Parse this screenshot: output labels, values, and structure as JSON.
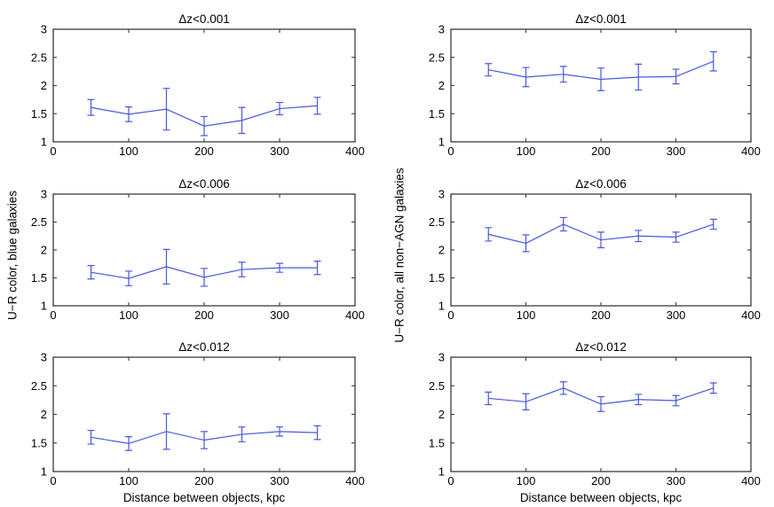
{
  "figure": {
    "background": "#ffffff",
    "line_color": "#4858e0",
    "axis_color": "#3c3c3c",
    "text_color": "#000000",
    "x_label": "Distance between objects, kpc",
    "left_y_label": "U−R color, blue galaxies",
    "right_y_label": "U−R color, all non−AGN galaxies"
  },
  "chart_data": [
    {
      "type": "line",
      "title": "Δz<0.001",
      "column": "left",
      "row": 0,
      "x": [
        50,
        100,
        150,
        200,
        250,
        300,
        350
      ],
      "y": [
        1.61,
        1.49,
        1.58,
        1.28,
        1.38,
        1.59,
        1.64
      ],
      "yerr": [
        0.14,
        0.13,
        0.37,
        0.17,
        0.23,
        0.11,
        0.15
      ],
      "xlim": [
        0,
        400
      ],
      "ylim": [
        1,
        3
      ],
      "xticks": [
        0,
        100,
        200,
        300,
        400
      ],
      "yticks": [
        1,
        1.5,
        2,
        2.5,
        3
      ],
      "grid": false,
      "legend": null
    },
    {
      "type": "line",
      "title": "Δz<0.001",
      "column": "right",
      "row": 0,
      "x": [
        50,
        100,
        150,
        200,
        250,
        300,
        350
      ],
      "y": [
        2.28,
        2.15,
        2.2,
        2.11,
        2.15,
        2.16,
        2.43
      ],
      "yerr": [
        0.11,
        0.17,
        0.14,
        0.2,
        0.23,
        0.13,
        0.17
      ],
      "xlim": [
        0,
        400
      ],
      "ylim": [
        1,
        3
      ],
      "xticks": [
        0,
        100,
        200,
        300,
        400
      ],
      "yticks": [
        1,
        1.5,
        2,
        2.5,
        3
      ],
      "grid": false,
      "legend": null
    },
    {
      "type": "line",
      "title": "Δz<0.006",
      "column": "left",
      "row": 1,
      "x": [
        50,
        100,
        150,
        200,
        250,
        300,
        350
      ],
      "y": [
        1.6,
        1.49,
        1.7,
        1.51,
        1.65,
        1.68,
        1.68
      ],
      "yerr": [
        0.12,
        0.13,
        0.31,
        0.16,
        0.13,
        0.08,
        0.12
      ],
      "xlim": [
        0,
        400
      ],
      "ylim": [
        1,
        3
      ],
      "xticks": [
        0,
        100,
        200,
        300,
        400
      ],
      "yticks": [
        1,
        1.5,
        2,
        2.5,
        3
      ],
      "grid": false,
      "legend": null
    },
    {
      "type": "line",
      "title": "Δz<0.006",
      "column": "right",
      "row": 1,
      "x": [
        50,
        100,
        150,
        200,
        250,
        300,
        350
      ],
      "y": [
        2.28,
        2.12,
        2.46,
        2.18,
        2.25,
        2.23,
        2.46
      ],
      "yerr": [
        0.12,
        0.15,
        0.12,
        0.14,
        0.1,
        0.09,
        0.09
      ],
      "xlim": [
        0,
        400
      ],
      "ylim": [
        1,
        3
      ],
      "xticks": [
        0,
        100,
        200,
        300,
        400
      ],
      "yticks": [
        1,
        1.5,
        2,
        2.5,
        3
      ],
      "grid": false,
      "legend": null
    },
    {
      "type": "line",
      "title": "Δz<0.012",
      "column": "left",
      "row": 2,
      "x": [
        50,
        100,
        150,
        200,
        250,
        300,
        350
      ],
      "y": [
        1.6,
        1.49,
        1.7,
        1.55,
        1.65,
        1.7,
        1.68
      ],
      "yerr": [
        0.12,
        0.12,
        0.31,
        0.15,
        0.13,
        0.08,
        0.12
      ],
      "xlim": [
        0,
        400
      ],
      "ylim": [
        1,
        3
      ],
      "xticks": [
        0,
        100,
        200,
        300,
        400
      ],
      "yticks": [
        1,
        1.5,
        2,
        2.5,
        3
      ],
      "grid": false,
      "legend": null
    },
    {
      "type": "line",
      "title": "Δz<0.012",
      "column": "right",
      "row": 2,
      "x": [
        50,
        100,
        150,
        200,
        250,
        300,
        350
      ],
      "y": [
        2.28,
        2.22,
        2.46,
        2.18,
        2.26,
        2.24,
        2.46
      ],
      "yerr": [
        0.11,
        0.14,
        0.11,
        0.13,
        0.09,
        0.09,
        0.09
      ],
      "xlim": [
        0,
        400
      ],
      "ylim": [
        1,
        3
      ],
      "xticks": [
        0,
        100,
        200,
        300,
        400
      ],
      "yticks": [
        1,
        1.5,
        2,
        2.5,
        3
      ],
      "grid": false,
      "legend": null
    }
  ]
}
